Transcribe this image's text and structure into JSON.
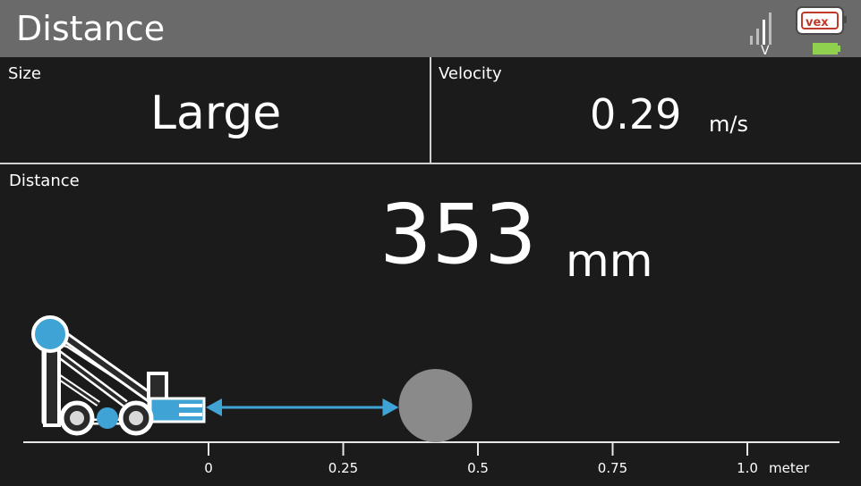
{
  "header": {
    "title": "Distance",
    "signal_icon": "signal-bars-icon",
    "signal_letter": "V",
    "brand_logo": "vex-logo",
    "battery_icon": "battery-icon",
    "battery_color": "#8fd14f"
  },
  "size_panel": {
    "label": "Size",
    "value": "Large"
  },
  "velocity_panel": {
    "label": "Velocity",
    "value": "0.29",
    "unit": "m/s"
  },
  "distance_panel": {
    "label": "Distance",
    "value": "353",
    "unit": "mm",
    "measured_meters": 0.353,
    "scale": {
      "ticks": [
        {
          "value": 0,
          "label": "0"
        },
        {
          "value": 0.25,
          "label": "0.25"
        },
        {
          "value": 0.5,
          "label": "0.5"
        },
        {
          "value": 0.75,
          "label": "0.75"
        },
        {
          "value": 1.0,
          "label": "1.0"
        }
      ],
      "unit_label": "meter"
    },
    "robot_icon": "robot-icon",
    "object_icon": "object-ball-icon",
    "accent_color": "#3fa3d6",
    "object_color": "#8a8a8a"
  }
}
